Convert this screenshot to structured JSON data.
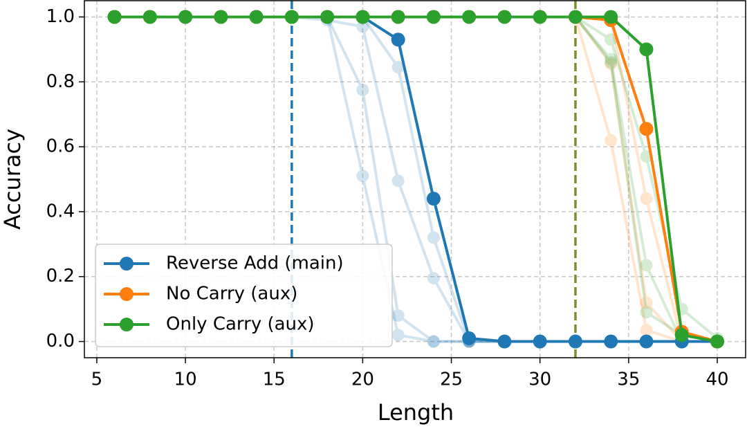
{
  "chart_data": {
    "type": "line",
    "x_label": "Length",
    "y_label": "Accuracy",
    "x": [
      6,
      8,
      10,
      12,
      14,
      16,
      18,
      20,
      22,
      24,
      26,
      28,
      30,
      32,
      34,
      36,
      38,
      40
    ],
    "series": [
      {
        "name": "Reverse Add (main)",
        "color": "#1f77b4",
        "values": [
          1,
          1,
          1,
          1,
          1,
          1,
          1,
          1,
          0.93,
          0.44,
          0.01,
          0,
          0,
          0,
          0,
          0,
          0,
          0
        ],
        "runs": [
          [
            1,
            1,
            1,
            1,
            1,
            1,
            1,
            0.51,
            0.02,
            0,
            0,
            0,
            0,
            0,
            0,
            0,
            0,
            0
          ],
          [
            1,
            1,
            1,
            1,
            1,
            1,
            1,
            0.775,
            0.08,
            0,
            0,
            0,
            0,
            0,
            0,
            0,
            0,
            0
          ],
          [
            1,
            1,
            1,
            1,
            1,
            1,
            0.99,
            0.97,
            0.495,
            0.195,
            0,
            0,
            0,
            0,
            0,
            0,
            0,
            0
          ],
          [
            1,
            1,
            1,
            1,
            1,
            1,
            1,
            1,
            0.845,
            0.32,
            0,
            0,
            0,
            0,
            0,
            0,
            0,
            0
          ]
        ]
      },
      {
        "name": "No Carry (aux)",
        "color": "#ff7f0e",
        "values": [
          1,
          1,
          1,
          1,
          1,
          1,
          1,
          1,
          1,
          1,
          1,
          1,
          1,
          1,
          0.99,
          0.655,
          0.03,
          0
        ],
        "runs": [
          [
            1,
            1,
            1,
            1,
            1,
            1,
            1,
            1,
            1,
            1,
            1,
            1,
            1,
            1,
            0.62,
            0.035,
            0,
            0
          ],
          [
            1,
            1,
            1,
            1,
            1,
            1,
            1,
            1,
            1,
            1,
            1,
            1,
            1,
            1,
            0.855,
            0.12,
            0,
            0
          ],
          [
            1,
            1,
            1,
            1,
            1,
            1,
            1,
            1,
            1,
            1,
            1,
            1,
            1,
            1,
            0.99,
            0.44,
            0,
            0
          ]
        ]
      },
      {
        "name": "Only Carry (aux)",
        "color": "#2ca02c",
        "values": [
          1,
          1,
          1,
          1,
          1,
          1,
          1,
          1,
          1,
          1,
          1,
          1,
          1,
          1,
          1,
          0.9,
          0.02,
          0
        ],
        "runs": [
          [
            1,
            1,
            1,
            1,
            1,
            1,
            1,
            1,
            1,
            1,
            1,
            1,
            1,
            1,
            0.93,
            0.57,
            0.1,
            0.01
          ],
          [
            1,
            1,
            1,
            1,
            1,
            1,
            1,
            1,
            1,
            1,
            1,
            1,
            1,
            1,
            0.87,
            0.235,
            0,
            0
          ],
          [
            1,
            1,
            1,
            1,
            1,
            1,
            1,
            1,
            1,
            1,
            1,
            1,
            1,
            1,
            0.86,
            0.09,
            0.02,
            0
          ]
        ]
      }
    ],
    "vlines": [
      {
        "x": 16,
        "color": "#1f77b4"
      },
      {
        "x": 32,
        "color": "#7a8f28"
      }
    ],
    "xlim": [
      4.3,
      41.6
    ],
    "ylim": [
      -0.05,
      1.05
    ],
    "xticks": [
      5,
      10,
      15,
      20,
      25,
      30,
      35,
      40
    ],
    "yticks": [
      {
        "value": 0,
        "label": "0.0"
      },
      0.2,
      0.4,
      0.6,
      0.8,
      {
        "value": 1,
        "label": "1.0"
      }
    ],
    "grid": true,
    "legend": "lower left"
  }
}
